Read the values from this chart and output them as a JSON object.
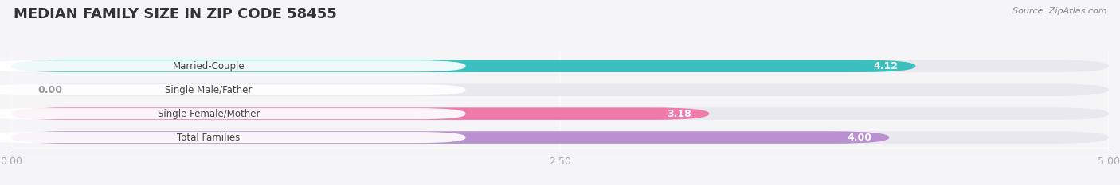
{
  "title": "MEDIAN FAMILY SIZE IN ZIP CODE 58455",
  "source": "Source: ZipAtlas.com",
  "categories": [
    "Married-Couple",
    "Single Male/Father",
    "Single Female/Mother",
    "Total Families"
  ],
  "values": [
    4.12,
    0.0,
    3.18,
    4.0
  ],
  "bar_colors": [
    "#3bbfbf",
    "#aabfe8",
    "#f07aaa",
    "#b990d0"
  ],
  "bar_bg_color": "#e8e8ee",
  "xlim": [
    0,
    5.0
  ],
  "xticks": [
    0.0,
    2.5,
    5.0
  ],
  "xtick_labels": [
    "0.00",
    "2.50",
    "5.00"
  ],
  "value_color_inside": "#ffffff",
  "value_color_outside": "#999999",
  "background_color": "#f5f5f8",
  "title_fontsize": 13,
  "bar_height": 0.52,
  "label_bg": "#ffffff",
  "label_text_color": "#444444"
}
